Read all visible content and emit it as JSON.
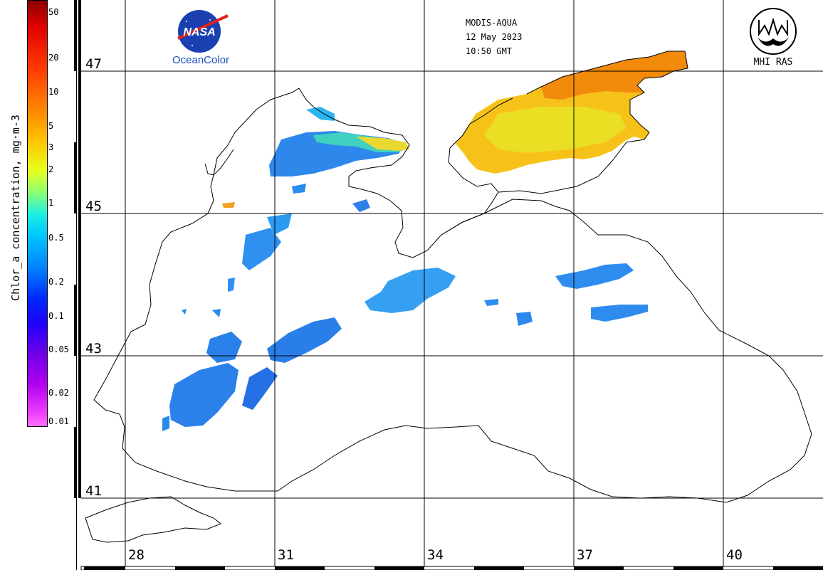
{
  "colorbar": {
    "label": "Chlor_a concentration, mg·m-3",
    "ticks": [
      "50",
      "20",
      "10",
      "5",
      "3",
      "2",
      "1",
      "0.5",
      "0.2",
      "0.1",
      "0.05",
      "0.02",
      "0.01"
    ]
  },
  "header": {
    "sensor": "MODIS-AQUA",
    "date": "12 May 2023",
    "time": "10:50 GMT"
  },
  "logos": {
    "nasa_caption": "OceanColor",
    "nasa_wordmark": "NASA",
    "mhi_caption": "MHI RAS"
  },
  "grid": {
    "latitudes": [
      "47",
      "45",
      "43",
      "41"
    ],
    "longitudes": [
      "28",
      "31",
      "34",
      "37",
      "40"
    ]
  },
  "colors": {
    "land_outline": "#000000",
    "grid": "#000000",
    "low_chl": "#2a7be8",
    "high_chl": "#f5b000"
  }
}
